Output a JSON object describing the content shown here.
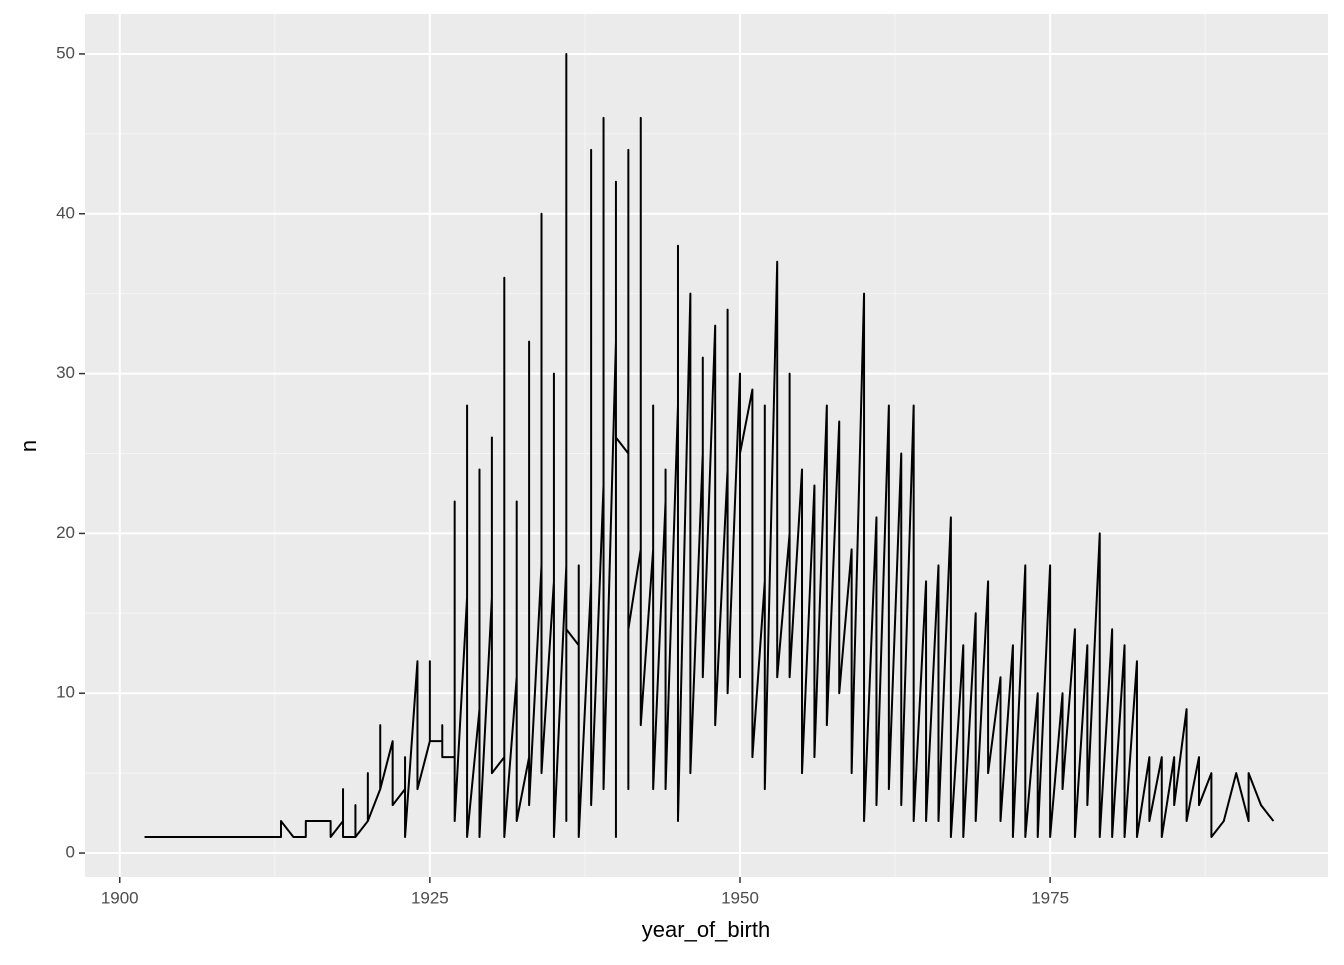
{
  "chart_data": {
    "type": "line",
    "x_label": "year_of_birth",
    "y_label": "n",
    "x": [
      1902,
      1903,
      1904,
      1905,
      1906,
      1907,
      1908,
      1909,
      1910,
      1911,
      1912,
      1913,
      1913,
      1914,
      1915,
      1915,
      1916,
      1917,
      1917,
      1918,
      1918,
      1918,
      1919,
      1919,
      1919,
      1920,
      1920,
      1920,
      1921,
      1921,
      1921,
      1922,
      1922,
      1923,
      1923,
      1923,
      1924,
      1924,
      1925,
      1925,
      1925,
      1926,
      1926,
      1926,
      1927,
      1927,
      1927,
      1928,
      1928,
      1928,
      1929,
      1929,
      1929,
      1930,
      1930,
      1930,
      1931,
      1931,
      1931,
      1932,
      1932,
      1932,
      1933,
      1933,
      1933,
      1934,
      1934,
      1934,
      1935,
      1935,
      1935,
      1936,
      1936,
      1936,
      1936,
      1937,
      1937,
      1937,
      1938,
      1938,
      1938,
      1939,
      1939,
      1939,
      1940,
      1940,
      1940,
      1940,
      1941,
      1941,
      1941,
      1941,
      1942,
      1942,
      1942,
      1943,
      1943,
      1943,
      1944,
      1944,
      1944,
      1945,
      1945,
      1945,
      1946,
      1946,
      1947,
      1947,
      1947,
      1948,
      1948,
      1949,
      1949,
      1949,
      1950,
      1950,
      1950,
      1951,
      1951,
      1952,
      1952,
      1952,
      1953,
      1953,
      1954,
      1954,
      1954,
      1955,
      1955,
      1956,
      1956,
      1957,
      1957,
      1958,
      1958,
      1959,
      1959,
      1960,
      1960,
      1961,
      1961,
      1962,
      1962,
      1963,
      1963,
      1964,
      1964,
      1965,
      1965,
      1966,
      1966,
      1967,
      1967,
      1968,
      1968,
      1969,
      1969,
      1970,
      1970,
      1971,
      1971,
      1972,
      1972,
      1973,
      1973,
      1974,
      1974,
      1975,
      1975,
      1976,
      1976,
      1977,
      1977,
      1978,
      1978,
      1979,
      1979,
      1979,
      1980,
      1980,
      1981,
      1981,
      1982,
      1982,
      1983,
      1983,
      1984,
      1984,
      1985,
      1985,
      1986,
      1986,
      1987,
      1987,
      1988,
      1988,
      1989,
      1990,
      1991,
      1991,
      1992,
      1993
    ],
    "values": [
      1,
      1,
      1,
      1,
      1,
      1,
      1,
      1,
      1,
      1,
      1,
      1,
      2,
      1,
      1,
      2,
      2,
      2,
      1,
      2,
      4,
      1,
      1,
      3,
      1,
      2,
      5,
      2,
      4,
      8,
      4,
      7,
      3,
      4,
      6,
      1,
      12,
      4,
      7,
      12,
      7,
      7,
      8,
      6,
      6,
      22,
      2,
      16,
      28,
      1,
      9,
      24,
      1,
      16,
      26,
      5,
      6,
      36,
      1,
      11,
      22,
      2,
      6,
      32,
      3,
      18,
      40,
      5,
      17,
      30,
      1,
      18,
      50,
      2,
      14,
      13,
      18,
      1,
      17,
      44,
      3,
      23,
      46,
      4,
      32,
      42,
      1,
      26,
      25,
      44,
      4,
      14,
      19,
      46,
      8,
      19,
      28,
      4,
      22,
      24,
      4,
      28,
      38,
      2,
      35,
      5,
      25,
      31,
      11,
      33,
      8,
      24,
      34,
      10,
      30,
      11,
      25,
      29,
      6,
      17,
      28,
      4,
      37,
      11,
      20,
      30,
      11,
      24,
      5,
      23,
      6,
      28,
      8,
      27,
      10,
      19,
      5,
      35,
      2,
      21,
      3,
      28,
      4,
      25,
      3,
      28,
      2,
      17,
      2,
      18,
      2,
      21,
      1,
      13,
      1,
      15,
      2,
      17,
      5,
      11,
      2,
      13,
      1,
      18,
      1,
      10,
      1,
      18,
      1,
      10,
      4,
      14,
      1,
      13,
      3,
      20,
      2,
      1,
      14,
      1,
      13,
      1,
      12,
      1,
      6,
      2,
      6,
      1,
      6,
      3,
      9,
      2,
      6,
      3,
      5,
      1,
      2,
      5,
      2,
      5,
      3,
      2
    ],
    "color": "#000000",
    "xlim": [
      1897.2,
      1997.4
    ],
    "ylim": [
      -1.5,
      52.5
    ],
    "xticks": [
      1900,
      1925,
      1950,
      1975
    ],
    "yticks": [
      0,
      10,
      20,
      30,
      40,
      50
    ],
    "grid": true
  }
}
